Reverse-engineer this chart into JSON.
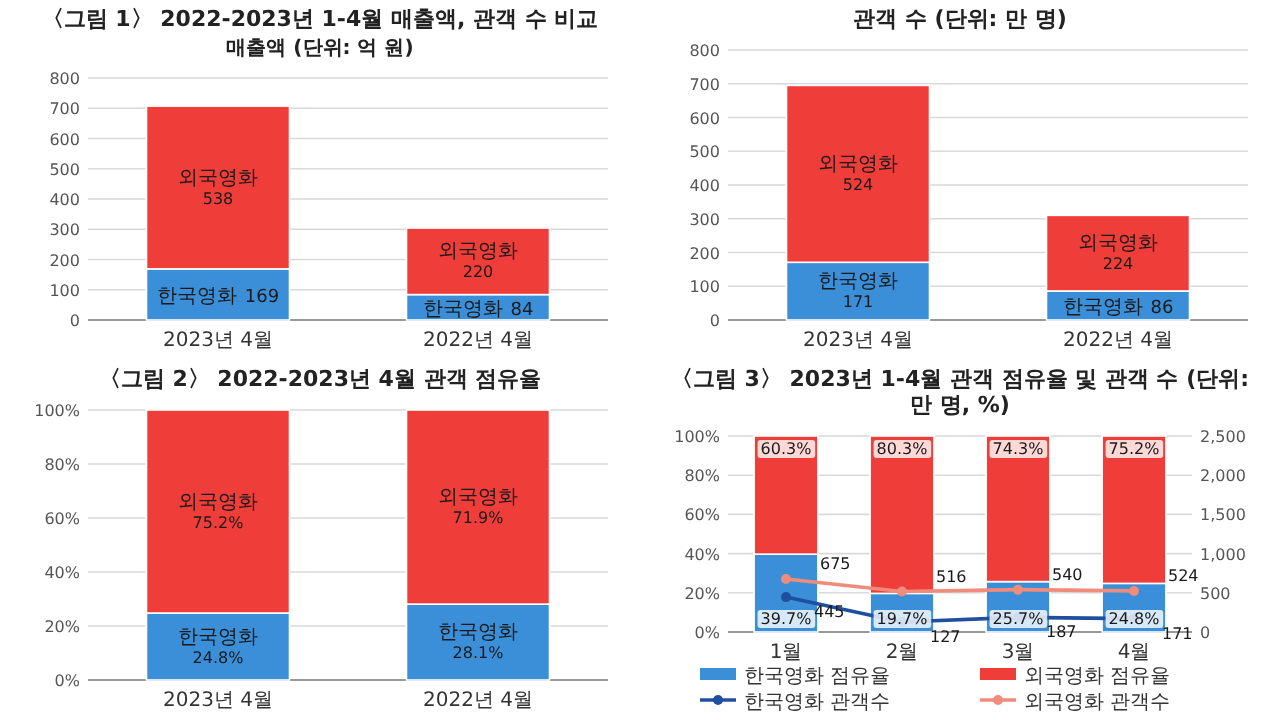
{
  "chart_data": [
    {
      "type": "bar",
      "title": "〈그림 1〉 2022-2023년 1-4월 매출액, 관객 수 비교",
      "subtitle": "매출액 (단위: 억 원)",
      "categories": [
        "2023년 4월",
        "2022년 4월"
      ],
      "stacked": true,
      "data_labels": true,
      "grid": "y",
      "ylim": [
        0,
        800
      ],
      "yticks": [
        0,
        100,
        200,
        300,
        400,
        500,
        600,
        700,
        800
      ],
      "series": [
        {
          "name": "한국영화",
          "color": "#3b8fd8",
          "values": [
            169,
            84
          ]
        },
        {
          "name": "외국영화",
          "color": "#ef3d3a",
          "values": [
            538,
            220
          ]
        }
      ]
    },
    {
      "type": "bar",
      "title": "관객 수 (단위: 만 명)",
      "categories": [
        "2023년 4월",
        "2022년 4월"
      ],
      "stacked": true,
      "data_labels": true,
      "grid": "y",
      "ylim": [
        0,
        800
      ],
      "yticks": [
        0,
        100,
        200,
        300,
        400,
        500,
        600,
        700,
        800
      ],
      "series": [
        {
          "name": "한국영화",
          "color": "#3b8fd8",
          "values": [
            171,
            86
          ]
        },
        {
          "name": "외국영화",
          "color": "#ef3d3a",
          "values": [
            524,
            224
          ]
        }
      ]
    },
    {
      "type": "bar",
      "title": "〈그림 2〉 2022-2023년 4월 관객 점유율",
      "categories": [
        "2023년 4월",
        "2022년 4월"
      ],
      "stacked": true,
      "grid": "y",
      "ylim": [
        0,
        100
      ],
      "yticks": [
        {
          "value": 0,
          "label": "0%"
        },
        {
          "value": 20,
          "label": "20%"
        },
        {
          "value": 40,
          "label": "40%"
        },
        {
          "value": 60,
          "label": "60%"
        },
        {
          "value": 80,
          "label": "80%"
        },
        {
          "value": 100,
          "label": "100%"
        }
      ],
      "series": [
        {
          "name": "한국영화",
          "color": "#3b8fd8",
          "values": [
            24.8,
            28.1
          ],
          "value_labels": [
            "24.8%",
            "28.1%"
          ]
        },
        {
          "name": "외국영화",
          "color": "#ef3d3a",
          "values": [
            75.2,
            71.9
          ],
          "value_labels": [
            "75.2%",
            "71.9%"
          ]
        }
      ]
    },
    {
      "type": "bar",
      "title": "〈그림 3〉 2023년 1-4월 관객 점유율 및 관객 수 (단위: 만 명, %)",
      "categories": [
        "1월",
        "2월",
        "3월",
        "4월"
      ],
      "stacked": true,
      "grid": "y",
      "legend": "bottom",
      "marker": "circle",
      "ylim": [
        0,
        100
      ],
      "yticks": [
        {
          "value": 0,
          "label": "0%"
        },
        {
          "value": 20,
          "label": "20%"
        },
        {
          "value": 40,
          "label": "40%"
        },
        {
          "value": 60,
          "label": "60%"
        },
        {
          "value": 80,
          "label": "80%"
        },
        {
          "value": 100,
          "label": "100%"
        }
      ],
      "y2lim": [
        0,
        2500
      ],
      "y2ticks": [
        0,
        500,
        {
          "value": 1000,
          "label": "1,000"
        },
        {
          "value": 1500,
          "label": "1,500"
        },
        {
          "value": 2000,
          "label": "2,000"
        },
        {
          "value": 2500,
          "label": "2,500"
        }
      ],
      "series": [
        {
          "name": "한국영화 점유율",
          "color": "#3b8fd8",
          "values": [
            39.7,
            19.7,
            25.7,
            24.8
          ],
          "value_labels": [
            "39.7%",
            "19.7%",
            "25.7%",
            "24.8%"
          ]
        },
        {
          "name": "외국영화 점유율",
          "color": "#ef3d3a",
          "values": [
            60.3,
            80.3,
            74.3,
            75.2
          ],
          "value_labels": [
            "60.3%",
            "80.3%",
            "74.3%",
            "75.2%"
          ]
        },
        {
          "name": "한국영화 관객수",
          "type": "line",
          "axis": "y2",
          "color": "#1f4f9e",
          "values": [
            445,
            127,
            187,
            171
          ],
          "value_labels": [
            "445",
            "127",
            "187",
            "171"
          ]
        },
        {
          "name": "외국영화 관객수",
          "type": "line",
          "axis": "y2",
          "color": "#f08c7c",
          "values": [
            675,
            516,
            540,
            524
          ],
          "value_labels": [
            "675",
            "516",
            "540",
            "524"
          ]
        }
      ]
    }
  ]
}
